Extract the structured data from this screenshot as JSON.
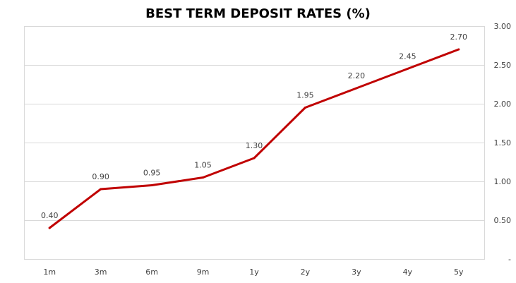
{
  "chart_data": {
    "type": "line",
    "title": "BEST TERM DEPOSIT RATES (%)",
    "categories": [
      "1m",
      "3m",
      "6m",
      "9m",
      "1y",
      "2y",
      "3y",
      "4y",
      "5y"
    ],
    "series": [
      {
        "values": [
          0.4,
          0.9,
          0.95,
          1.05,
          1.3,
          1.95,
          2.2,
          2.45,
          2.7
        ],
        "data_labels": [
          "0.40",
          "0.90",
          "0.95",
          "1.05",
          "1.30",
          "1.95",
          "2.20",
          "2.45",
          "2.70"
        ],
        "color": "#c00000"
      }
    ],
    "y_axis": {
      "position": "right",
      "ylim": [
        0,
        3.0
      ],
      "ticks": [
        0,
        0.5,
        1.0,
        1.5,
        2.0,
        2.5,
        3.0
      ],
      "tick_labels": [
        "-",
        "0.50",
        "1.00",
        "1.50",
        "2.00",
        "2.50",
        "3.00"
      ]
    },
    "grid": true,
    "legend": "none"
  }
}
